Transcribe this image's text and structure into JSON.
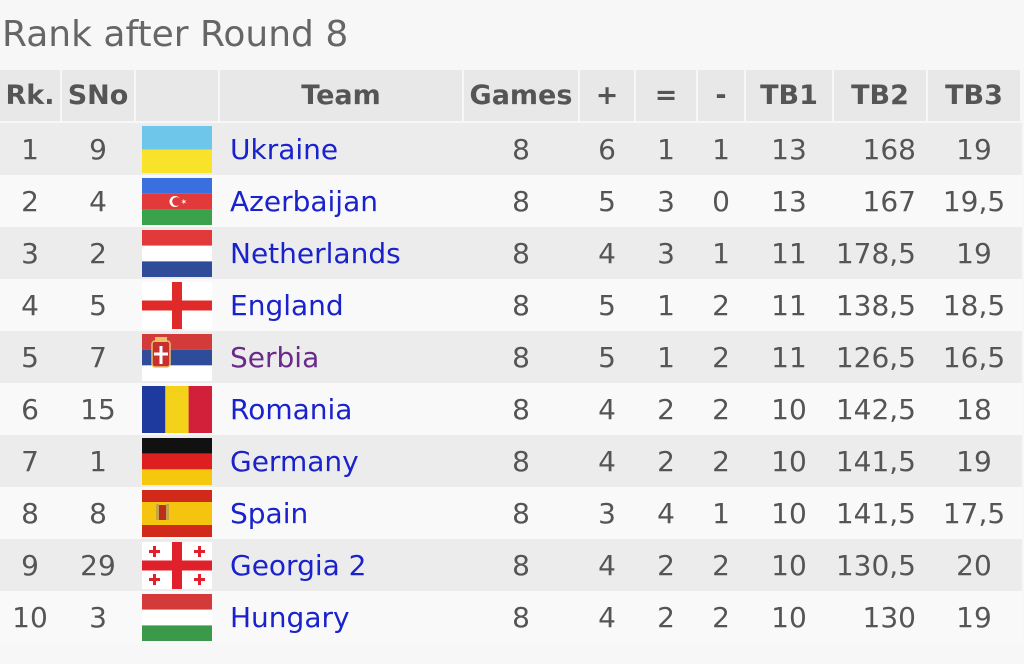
{
  "title": "Rank after Round 8",
  "headers": {
    "rk": "Rk.",
    "sno": "SNo",
    "team": "Team",
    "games": "Games",
    "plus": "+",
    "eq": "=",
    "minus": "-",
    "tb1": "TB1",
    "tb2": "TB2",
    "tb3": "TB3"
  },
  "rows": [
    {
      "rk": "1",
      "sno": "9",
      "flag": "ukraine-flag-icon",
      "team": "Ukraine",
      "games": "8",
      "plus": "6",
      "eq": "1",
      "minus": "1",
      "tb1": "13",
      "tb2": "168",
      "tb3": "19"
    },
    {
      "rk": "2",
      "sno": "4",
      "flag": "azerbaijan-flag-icon",
      "team": "Azerbaijan",
      "games": "8",
      "plus": "5",
      "eq": "3",
      "minus": "0",
      "tb1": "13",
      "tb2": "167",
      "tb3": "19,5"
    },
    {
      "rk": "3",
      "sno": "2",
      "flag": "netherlands-flag-icon",
      "team": "Netherlands",
      "games": "8",
      "plus": "4",
      "eq": "3",
      "minus": "1",
      "tb1": "11",
      "tb2": "178,5",
      "tb3": "19"
    },
    {
      "rk": "4",
      "sno": "5",
      "flag": "england-flag-icon",
      "team": "England",
      "games": "8",
      "plus": "5",
      "eq": "1",
      "minus": "2",
      "tb1": "11",
      "tb2": "138,5",
      "tb3": "18,5"
    },
    {
      "rk": "5",
      "sno": "7",
      "flag": "serbia-flag-icon",
      "team": "Serbia",
      "games": "8",
      "plus": "5",
      "eq": "1",
      "minus": "2",
      "tb1": "11",
      "tb2": "126,5",
      "tb3": "16,5"
    },
    {
      "rk": "6",
      "sno": "15",
      "flag": "romania-flag-icon",
      "team": "Romania",
      "games": "8",
      "plus": "4",
      "eq": "2",
      "minus": "2",
      "tb1": "10",
      "tb2": "142,5",
      "tb3": "18"
    },
    {
      "rk": "7",
      "sno": "1",
      "flag": "germany-flag-icon",
      "team": "Germany",
      "games": "8",
      "plus": "4",
      "eq": "2",
      "minus": "2",
      "tb1": "10",
      "tb2": "141,5",
      "tb3": "19"
    },
    {
      "rk": "8",
      "sno": "8",
      "flag": "spain-flag-icon",
      "team": "Spain",
      "games": "8",
      "plus": "3",
      "eq": "4",
      "minus": "1",
      "tb1": "10",
      "tb2": "141,5",
      "tb3": "17,5"
    },
    {
      "rk": "9",
      "sno": "29",
      "flag": "georgia-flag-icon",
      "team": "Georgia 2",
      "games": "8",
      "plus": "4",
      "eq": "2",
      "minus": "2",
      "tb1": "10",
      "tb2": "130,5",
      "tb3": "20"
    },
    {
      "rk": "10",
      "sno": "3",
      "flag": "hungary-flag-icon",
      "team": "Hungary",
      "games": "8",
      "plus": "4",
      "eq": "2",
      "minus": "2",
      "tb1": "10",
      "tb2": "130",
      "tb3": "19"
    }
  ],
  "colors": {
    "link": "#1a22cc",
    "visited_link": "#6a2a8a",
    "header_bg": "#e8e8e8",
    "row_odd_bg": "#ececec",
    "row_even_bg": "#f9f9f9"
  }
}
